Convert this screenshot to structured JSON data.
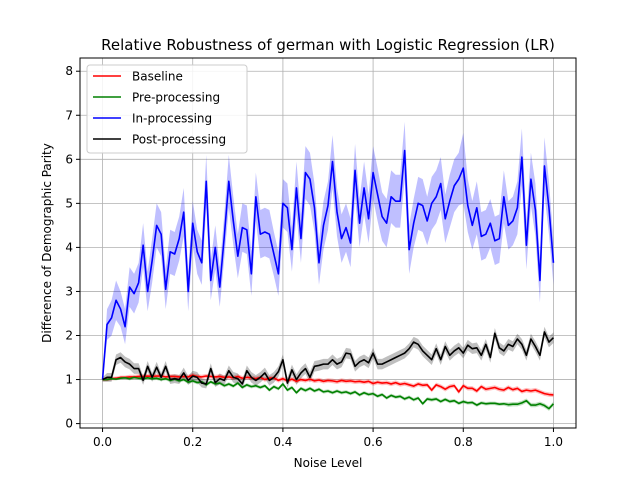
{
  "chart_data": {
    "type": "line",
    "title": "Relative Robustness of german with Logistic Regression (LR)",
    "xlabel": "Noise Level",
    "ylabel": "Difference of Demographic Parity",
    "xlim": [
      -0.05,
      1.05
    ],
    "ylim": [
      -0.1,
      8.3
    ],
    "xticks": [
      0.0,
      0.2,
      0.4,
      0.6,
      0.8,
      1.0
    ],
    "xtick_labels": [
      "0.0",
      "0.2",
      "0.4",
      "0.6",
      "0.8",
      "1.0"
    ],
    "yticks": [
      0,
      1,
      2,
      3,
      4,
      5,
      6,
      7,
      8
    ],
    "ytick_labels": [
      "0",
      "1",
      "2",
      "3",
      "4",
      "5",
      "6",
      "7",
      "8"
    ],
    "grid": true,
    "legend_position": "top-left",
    "x": [
      0.0,
      0.01,
      0.02,
      0.03,
      0.04,
      0.05,
      0.06,
      0.07,
      0.08,
      0.09,
      0.1,
      0.11,
      0.12,
      0.13,
      0.14,
      0.15,
      0.16,
      0.17,
      0.18,
      0.19,
      0.2,
      0.21,
      0.22,
      0.23,
      0.24,
      0.25,
      0.26,
      0.27,
      0.28,
      0.29,
      0.3,
      0.31,
      0.32,
      0.33,
      0.34,
      0.35,
      0.36,
      0.37,
      0.38,
      0.39,
      0.4,
      0.41,
      0.42,
      0.43,
      0.44,
      0.45,
      0.46,
      0.47,
      0.48,
      0.49,
      0.5,
      0.51,
      0.52,
      0.53,
      0.54,
      0.55,
      0.56,
      0.57,
      0.58,
      0.59,
      0.6,
      0.61,
      0.62,
      0.63,
      0.64,
      0.65,
      0.66,
      0.67,
      0.68,
      0.69,
      0.7,
      0.71,
      0.72,
      0.73,
      0.74,
      0.75,
      0.76,
      0.77,
      0.78,
      0.79,
      0.8,
      0.81,
      0.82,
      0.83,
      0.84,
      0.85,
      0.86,
      0.87,
      0.88,
      0.89,
      0.9,
      0.91,
      0.92,
      0.93,
      0.94,
      0.95,
      0.96,
      0.97,
      0.98,
      0.99,
      1.0
    ],
    "series": [
      {
        "name": "Baseline",
        "color": "#ff0000",
        "band_opacity": 0.25,
        "values": [
          1.0,
          1.0,
          1.02,
          1.03,
          1.05,
          1.05,
          1.06,
          1.06,
          1.07,
          1.07,
          1.08,
          1.07,
          1.08,
          1.08,
          1.06,
          1.07,
          1.07,
          1.06,
          1.07,
          1.06,
          1.1,
          1.07,
          1.06,
          1.08,
          1.07,
          1.06,
          1.07,
          1.05,
          1.06,
          1.04,
          1.07,
          1.03,
          1.05,
          1.04,
          1.02,
          1.05,
          1.0,
          1.03,
          1.04,
          0.98,
          1.02,
          0.97,
          1.01,
          0.96,
          1.0,
          0.98,
          1.01,
          0.97,
          0.99,
          0.96,
          0.98,
          0.97,
          0.95,
          0.98,
          0.96,
          0.97,
          0.95,
          0.96,
          0.94,
          0.96,
          0.91,
          0.94,
          0.92,
          0.93,
          0.9,
          0.93,
          0.89,
          0.91,
          0.88,
          0.85,
          0.9,
          0.87,
          0.88,
          0.76,
          0.88,
          0.84,
          0.78,
          0.84,
          0.86,
          0.72,
          0.86,
          0.8,
          0.8,
          0.74,
          0.84,
          0.78,
          0.8,
          0.82,
          0.78,
          0.76,
          0.82,
          0.77,
          0.8,
          0.73,
          0.76,
          0.74,
          0.76,
          0.72,
          0.68,
          0.66,
          0.65
        ],
        "band": [
          0.04,
          0.04,
          0.04,
          0.04,
          0.04,
          0.04,
          0.05,
          0.05,
          0.05,
          0.05,
          0.05,
          0.05,
          0.05,
          0.05,
          0.05,
          0.05,
          0.05,
          0.05,
          0.05,
          0.05,
          0.05,
          0.05,
          0.05,
          0.05,
          0.05,
          0.05,
          0.05,
          0.05,
          0.05,
          0.05,
          0.05,
          0.05,
          0.05,
          0.05,
          0.05,
          0.05,
          0.05,
          0.05,
          0.05,
          0.05,
          0.05,
          0.05,
          0.05,
          0.05,
          0.05,
          0.05,
          0.05,
          0.05,
          0.05,
          0.05,
          0.05,
          0.05,
          0.05,
          0.05,
          0.05,
          0.05,
          0.05,
          0.05,
          0.05,
          0.05,
          0.05,
          0.05,
          0.05,
          0.05,
          0.05,
          0.05,
          0.05,
          0.05,
          0.05,
          0.05,
          0.05,
          0.05,
          0.05,
          0.05,
          0.05,
          0.05,
          0.05,
          0.05,
          0.05,
          0.05,
          0.05,
          0.05,
          0.05,
          0.05,
          0.05,
          0.05,
          0.05,
          0.05,
          0.05,
          0.05,
          0.05,
          0.05,
          0.05,
          0.05,
          0.05,
          0.05,
          0.05,
          0.05,
          0.05,
          0.05,
          0.05
        ]
      },
      {
        "name": "Pre-processing",
        "color": "#008000",
        "band_opacity": 0.25,
        "values": [
          1.0,
          1.0,
          1.02,
          1.01,
          1.03,
          1.04,
          1.02,
          1.05,
          1.03,
          1.02,
          1.04,
          1.02,
          1.03,
          1.0,
          1.02,
          0.98,
          1.01,
          0.97,
          1.0,
          0.94,
          0.97,
          0.93,
          0.95,
          0.88,
          0.95,
          0.9,
          0.92,
          0.86,
          0.9,
          0.85,
          0.92,
          0.82,
          0.88,
          0.84,
          0.86,
          0.82,
          0.86,
          0.76,
          0.84,
          0.79,
          0.9,
          0.76,
          0.82,
          0.7,
          0.8,
          0.75,
          0.8,
          0.74,
          0.78,
          0.72,
          0.74,
          0.7,
          0.74,
          0.7,
          0.72,
          0.68,
          0.72,
          0.65,
          0.7,
          0.66,
          0.68,
          0.62,
          0.66,
          0.58,
          0.64,
          0.6,
          0.62,
          0.56,
          0.6,
          0.54,
          0.58,
          0.45,
          0.56,
          0.54,
          0.56,
          0.5,
          0.55,
          0.5,
          0.52,
          0.46,
          0.5,
          0.47,
          0.48,
          0.42,
          0.47,
          0.45,
          0.46,
          0.46,
          0.44,
          0.45,
          0.43,
          0.44,
          0.44,
          0.47,
          0.52,
          0.42,
          0.42,
          0.45,
          0.41,
          0.34,
          0.45
        ],
        "band": [
          0.03,
          0.03,
          0.03,
          0.03,
          0.03,
          0.03,
          0.04,
          0.04,
          0.04,
          0.04,
          0.04,
          0.04,
          0.04,
          0.04,
          0.04,
          0.04,
          0.04,
          0.04,
          0.04,
          0.04,
          0.04,
          0.04,
          0.04,
          0.04,
          0.04,
          0.04,
          0.04,
          0.04,
          0.04,
          0.04,
          0.04,
          0.04,
          0.04,
          0.04,
          0.04,
          0.04,
          0.04,
          0.04,
          0.04,
          0.04,
          0.04,
          0.04,
          0.04,
          0.04,
          0.04,
          0.04,
          0.04,
          0.04,
          0.04,
          0.04,
          0.04,
          0.04,
          0.04,
          0.04,
          0.04,
          0.04,
          0.04,
          0.04,
          0.04,
          0.04,
          0.04,
          0.04,
          0.04,
          0.04,
          0.04,
          0.04,
          0.04,
          0.04,
          0.04,
          0.04,
          0.04,
          0.04,
          0.04,
          0.04,
          0.04,
          0.04,
          0.04,
          0.04,
          0.04,
          0.04,
          0.04,
          0.04,
          0.04,
          0.04,
          0.04,
          0.04,
          0.04,
          0.04,
          0.04,
          0.04,
          0.05,
          0.05,
          0.05,
          0.05,
          0.05,
          0.05,
          0.05,
          0.05,
          0.05,
          0.05,
          0.05
        ]
      },
      {
        "name": "In-processing",
        "color": "#0000ff",
        "band_opacity": 0.25,
        "values": [
          1.0,
          2.25,
          2.4,
          2.8,
          2.6,
          2.2,
          3.1,
          2.95,
          3.2,
          4.05,
          3.0,
          3.7,
          4.5,
          4.3,
          3.05,
          3.9,
          3.85,
          4.2,
          4.8,
          3.0,
          4.55,
          3.9,
          3.65,
          5.5,
          3.25,
          4.0,
          3.1,
          4.25,
          5.5,
          4.6,
          3.8,
          4.45,
          4.4,
          3.4,
          5.15,
          4.3,
          4.35,
          4.3,
          3.85,
          3.4,
          5.0,
          4.9,
          3.95,
          5.35,
          4.2,
          5.7,
          5.55,
          4.9,
          3.65,
          4.5,
          4.95,
          5.95,
          4.8,
          4.2,
          4.45,
          4.1,
          5.75,
          4.55,
          5.35,
          4.65,
          5.7,
          5.2,
          4.7,
          4.55,
          5.15,
          5.05,
          5.05,
          6.2,
          3.95,
          4.55,
          5.0,
          4.95,
          4.6,
          5.0,
          5.15,
          5.45,
          4.65,
          5.05,
          5.4,
          5.55,
          5.8,
          4.95,
          4.5,
          4.9,
          4.25,
          4.3,
          4.55,
          4.15,
          4.2,
          5.15,
          4.5,
          4.6,
          4.9,
          6.05,
          4.05,
          5.55,
          4.85,
          3.25,
          5.85,
          4.9,
          3.65
        ],
        "band": [
          0.05,
          0.35,
          0.4,
          0.45,
          0.4,
          0.4,
          0.45,
          0.45,
          0.45,
          0.5,
          0.45,
          0.5,
          0.5,
          0.5,
          0.45,
          0.5,
          0.5,
          0.5,
          0.55,
          0.45,
          0.5,
          0.5,
          0.5,
          0.6,
          0.45,
          0.5,
          0.45,
          0.5,
          0.6,
          0.55,
          0.5,
          0.55,
          0.55,
          0.5,
          0.55,
          0.55,
          0.55,
          0.55,
          0.5,
          0.5,
          0.55,
          0.55,
          0.5,
          0.6,
          0.55,
          0.6,
          0.6,
          0.55,
          0.5,
          0.55,
          0.55,
          0.6,
          0.55,
          0.55,
          0.55,
          0.55,
          0.6,
          0.55,
          0.6,
          0.55,
          0.6,
          0.6,
          0.55,
          0.55,
          0.6,
          0.6,
          0.6,
          0.65,
          0.55,
          0.55,
          0.6,
          0.6,
          0.55,
          0.6,
          0.6,
          0.6,
          0.55,
          0.6,
          0.6,
          0.6,
          0.8,
          0.6,
          0.55,
          0.6,
          0.55,
          0.55,
          0.55,
          0.55,
          0.55,
          0.6,
          0.55,
          0.55,
          0.6,
          0.65,
          0.55,
          0.6,
          0.6,
          0.5,
          0.65,
          0.6,
          0.5
        ]
      },
      {
        "name": "Post-processing",
        "color": "#000000",
        "band_opacity": 0.25,
        "values": [
          1.0,
          1.05,
          1.05,
          1.45,
          1.5,
          1.4,
          1.35,
          1.25,
          1.25,
          0.98,
          1.3,
          1.05,
          1.28,
          1.05,
          1.3,
          1.0,
          1.02,
          1.0,
          1.15,
          0.98,
          1.08,
          1.05,
          0.92,
          0.9,
          1.25,
          0.93,
          1.02,
          0.98,
          1.2,
          1.05,
          1.02,
          0.9,
          1.2,
          1.05,
          0.98,
          1.05,
          1.15,
          0.98,
          1.05,
          1.18,
          1.45,
          0.92,
          1.22,
          1.0,
          1.15,
          1.25,
          1.05,
          1.3,
          1.32,
          1.35,
          1.35,
          1.45,
          1.35,
          1.4,
          1.6,
          1.58,
          1.3,
          1.4,
          1.45,
          1.38,
          1.6,
          1.35,
          1.35,
          1.4,
          1.45,
          1.5,
          1.55,
          1.6,
          1.7,
          1.85,
          1.8,
          1.65,
          1.55,
          1.45,
          1.7,
          1.45,
          1.75,
          1.55,
          1.65,
          1.72,
          1.6,
          1.78,
          1.7,
          1.72,
          1.55,
          1.8,
          1.5,
          2.05,
          1.72,
          1.65,
          1.8,
          1.75,
          1.92,
          1.8,
          1.55,
          1.92,
          1.75,
          1.55,
          2.08,
          1.85,
          1.95
        ],
        "band": [
          0.05,
          0.1,
          0.1,
          0.12,
          0.12,
          0.12,
          0.12,
          0.12,
          0.12,
          0.1,
          0.12,
          0.1,
          0.12,
          0.1,
          0.12,
          0.1,
          0.1,
          0.1,
          0.12,
          0.1,
          0.12,
          0.12,
          0.1,
          0.1,
          0.12,
          0.1,
          0.12,
          0.1,
          0.12,
          0.12,
          0.12,
          0.1,
          0.12,
          0.12,
          0.12,
          0.12,
          0.12,
          0.12,
          0.12,
          0.12,
          0.12,
          0.12,
          0.12,
          0.12,
          0.12,
          0.12,
          0.12,
          0.12,
          0.12,
          0.12,
          0.12,
          0.12,
          0.12,
          0.12,
          0.12,
          0.12,
          0.12,
          0.12,
          0.12,
          0.12,
          0.12,
          0.12,
          0.12,
          0.12,
          0.12,
          0.12,
          0.12,
          0.12,
          0.12,
          0.12,
          0.12,
          0.12,
          0.12,
          0.12,
          0.12,
          0.12,
          0.12,
          0.12,
          0.12,
          0.12,
          0.12,
          0.12,
          0.12,
          0.12,
          0.12,
          0.12,
          0.12,
          0.12,
          0.12,
          0.12,
          0.12,
          0.12,
          0.12,
          0.12,
          0.12,
          0.12,
          0.12,
          0.12,
          0.12,
          0.12,
          0.12
        ]
      }
    ]
  }
}
